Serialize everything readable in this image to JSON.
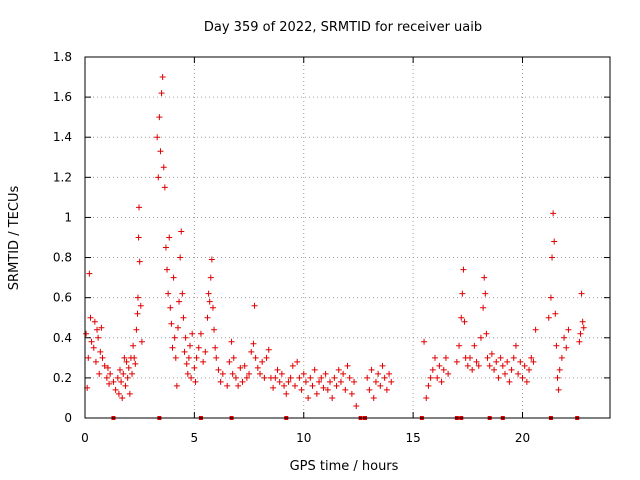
{
  "chart_data": {
    "type": "scatter",
    "title": "Day 359 of 2022, SRMTID for receiver uaib",
    "xlabel": "GPS time / hours",
    "ylabel": "SRMTID / TECUs",
    "xlim": [
      0,
      24
    ],
    "ylim": [
      0,
      1.8
    ],
    "grid": true,
    "marker": "+",
    "color": "#e00000",
    "x_ticks": [
      {
        "value": 0,
        "label": "0"
      },
      {
        "value": 5,
        "label": "5"
      },
      {
        "value": 10,
        "label": "10"
      },
      {
        "value": 15,
        "label": "15"
      },
      {
        "value": 20,
        "label": "20"
      }
    ],
    "y_ticks": [
      {
        "value": 0,
        "label": "0"
      },
      {
        "value": 0.2,
        "label": "0.2"
      },
      {
        "value": 0.4,
        "label": "0.4"
      },
      {
        "value": 0.6,
        "label": "0.6"
      },
      {
        "value": 0.8,
        "label": "0.8"
      },
      {
        "value": 1.0,
        "label": "1"
      },
      {
        "value": 1.2,
        "label": "1.2"
      },
      {
        "value": 1.4,
        "label": "1.4"
      },
      {
        "value": 1.6,
        "label": "1.6"
      },
      {
        "value": 1.8,
        "label": "1.8"
      }
    ],
    "series": [
      {
        "name": "SRMTID",
        "points": [
          [
            0.05,
            0.42
          ],
          [
            0.1,
            0.15
          ],
          [
            0.15,
            0.3
          ],
          [
            0.2,
            0.72
          ],
          [
            0.25,
            0.5
          ],
          [
            0.3,
            0.38
          ],
          [
            0.4,
            0.35
          ],
          [
            0.45,
            0.48
          ],
          [
            0.5,
            0.28
          ],
          [
            0.55,
            0.44
          ],
          [
            0.6,
            0.4
          ],
          [
            0.65,
            0.22
          ],
          [
            0.7,
            0.33
          ],
          [
            0.75,
            0.45
          ],
          [
            0.8,
            0.3
          ],
          [
            0.9,
            0.26
          ],
          [
            1.0,
            0.2
          ],
          [
            1.05,
            0.25
          ],
          [
            1.1,
            0.17
          ],
          [
            1.15,
            0.22
          ],
          [
            1.3,
            0.18
          ],
          [
            1.4,
            0.14
          ],
          [
            1.5,
            0.2
          ],
          [
            1.55,
            0.12
          ],
          [
            1.6,
            0.24
          ],
          [
            1.65,
            0.18
          ],
          [
            1.7,
            0.1
          ],
          [
            1.75,
            0.22
          ],
          [
            1.8,
            0.3
          ],
          [
            1.85,
            0.16
          ],
          [
            1.9,
            0.28
          ],
          [
            1.95,
            0.2
          ],
          [
            2.0,
            0.25
          ],
          [
            2.05,
            0.12
          ],
          [
            2.1,
            0.3
          ],
          [
            2.15,
            0.22
          ],
          [
            2.2,
            0.36
          ],
          [
            2.25,
            0.3
          ],
          [
            2.3,
            0.27
          ],
          [
            2.35,
            0.44
          ],
          [
            2.4,
            0.52
          ],
          [
            2.42,
            0.6
          ],
          [
            2.45,
            0.9
          ],
          [
            2.47,
            1.05
          ],
          [
            2.5,
            0.78
          ],
          [
            2.55,
            0.56
          ],
          [
            2.6,
            0.38
          ],
          [
            3.3,
            1.4
          ],
          [
            3.35,
            1.2
          ],
          [
            3.4,
            1.5
          ],
          [
            3.45,
            1.33
          ],
          [
            3.5,
            1.62
          ],
          [
            3.55,
            1.7
          ],
          [
            3.6,
            1.25
          ],
          [
            3.65,
            1.15
          ],
          [
            3.7,
            0.85
          ],
          [
            3.75,
            0.74
          ],
          [
            3.8,
            0.62
          ],
          [
            3.85,
            0.9
          ],
          [
            3.9,
            0.55
          ],
          [
            3.95,
            0.47
          ],
          [
            4.0,
            0.35
          ],
          [
            4.05,
            0.7
          ],
          [
            4.1,
            0.4
          ],
          [
            4.15,
            0.3
          ],
          [
            4.2,
            0.16
          ],
          [
            4.25,
            0.45
          ],
          [
            4.3,
            0.58
          ],
          [
            4.35,
            0.8
          ],
          [
            4.4,
            0.93
          ],
          [
            4.45,
            0.62
          ],
          [
            4.5,
            0.5
          ],
          [
            4.55,
            0.33
          ],
          [
            4.6,
            0.4
          ],
          [
            4.65,
            0.27
          ],
          [
            4.7,
            0.22
          ],
          [
            4.75,
            0.3
          ],
          [
            4.8,
            0.36
          ],
          [
            4.85,
            0.2
          ],
          [
            4.9,
            0.42
          ],
          [
            5.0,
            0.25
          ],
          [
            5.05,
            0.18
          ],
          [
            5.1,
            0.3
          ],
          [
            5.2,
            0.35
          ],
          [
            5.3,
            0.42
          ],
          [
            5.4,
            0.28
          ],
          [
            5.5,
            0.33
          ],
          [
            5.6,
            0.5
          ],
          [
            5.65,
            0.62
          ],
          [
            5.7,
            0.58
          ],
          [
            5.75,
            0.7
          ],
          [
            5.8,
            0.79
          ],
          [
            5.85,
            0.55
          ],
          [
            5.9,
            0.44
          ],
          [
            5.95,
            0.35
          ],
          [
            6.0,
            0.3
          ],
          [
            6.1,
            0.24
          ],
          [
            6.2,
            0.18
          ],
          [
            6.3,
            0.22
          ],
          [
            6.5,
            0.16
          ],
          [
            6.6,
            0.28
          ],
          [
            6.7,
            0.38
          ],
          [
            6.75,
            0.22
          ],
          [
            6.8,
            0.3
          ],
          [
            6.9,
            0.2
          ],
          [
            7.0,
            0.16
          ],
          [
            7.1,
            0.25
          ],
          [
            7.2,
            0.18
          ],
          [
            7.3,
            0.26
          ],
          [
            7.4,
            0.2
          ],
          [
            7.5,
            0.22
          ],
          [
            7.6,
            0.33
          ],
          [
            7.7,
            0.37
          ],
          [
            7.75,
            0.56
          ],
          [
            7.8,
            0.3
          ],
          [
            7.9,
            0.25
          ],
          [
            8.0,
            0.22
          ],
          [
            8.1,
            0.28
          ],
          [
            8.2,
            0.2
          ],
          [
            8.3,
            0.3
          ],
          [
            8.4,
            0.34
          ],
          [
            8.5,
            0.2
          ],
          [
            8.6,
            0.15
          ],
          [
            8.7,
            0.2
          ],
          [
            8.8,
            0.24
          ],
          [
            8.9,
            0.18
          ],
          [
            9.0,
            0.22
          ],
          [
            9.1,
            0.16
          ],
          [
            9.2,
            0.12
          ],
          [
            9.3,
            0.18
          ],
          [
            9.4,
            0.2
          ],
          [
            9.5,
            0.26
          ],
          [
            9.6,
            0.16
          ],
          [
            9.7,
            0.28
          ],
          [
            9.8,
            0.2
          ],
          [
            9.9,
            0.14
          ],
          [
            10.0,
            0.22
          ],
          [
            10.1,
            0.18
          ],
          [
            10.2,
            0.1
          ],
          [
            10.3,
            0.2
          ],
          [
            10.4,
            0.16
          ],
          [
            10.5,
            0.24
          ],
          [
            10.6,
            0.12
          ],
          [
            10.7,
            0.18
          ],
          [
            10.8,
            0.2
          ],
          [
            10.9,
            0.15
          ],
          [
            11.0,
            0.22
          ],
          [
            11.1,
            0.14
          ],
          [
            11.2,
            0.18
          ],
          [
            11.3,
            0.1
          ],
          [
            11.4,
            0.2
          ],
          [
            11.5,
            0.16
          ],
          [
            11.6,
            0.24
          ],
          [
            11.7,
            0.18
          ],
          [
            11.8,
            0.22
          ],
          [
            11.9,
            0.14
          ],
          [
            12.0,
            0.26
          ],
          [
            12.1,
            0.2
          ],
          [
            12.2,
            0.12
          ],
          [
            12.3,
            0.18
          ],
          [
            12.4,
            0.06
          ],
          [
            12.9,
            0.2
          ],
          [
            13.0,
            0.14
          ],
          [
            13.1,
            0.24
          ],
          [
            13.2,
            0.1
          ],
          [
            13.3,
            0.18
          ],
          [
            13.4,
            0.22
          ],
          [
            13.5,
            0.16
          ],
          [
            13.6,
            0.26
          ],
          [
            13.7,
            0.2
          ],
          [
            13.8,
            0.14
          ],
          [
            13.9,
            0.22
          ],
          [
            14.0,
            0.18
          ],
          [
            15.5,
            0.38
          ],
          [
            15.6,
            0.1
          ],
          [
            15.7,
            0.16
          ],
          [
            15.8,
            0.2
          ],
          [
            15.9,
            0.24
          ],
          [
            16.0,
            0.3
          ],
          [
            16.1,
            0.2
          ],
          [
            16.2,
            0.26
          ],
          [
            16.3,
            0.18
          ],
          [
            16.4,
            0.24
          ],
          [
            16.5,
            0.3
          ],
          [
            16.6,
            0.22
          ],
          [
            17.0,
            0.28
          ],
          [
            17.1,
            0.36
          ],
          [
            17.2,
            0.5
          ],
          [
            17.25,
            0.62
          ],
          [
            17.3,
            0.74
          ],
          [
            17.35,
            0.48
          ],
          [
            17.4,
            0.3
          ],
          [
            17.5,
            0.26
          ],
          [
            17.6,
            0.3
          ],
          [
            17.7,
            0.24
          ],
          [
            17.8,
            0.36
          ],
          [
            17.9,
            0.28
          ],
          [
            18.0,
            0.26
          ],
          [
            18.1,
            0.4
          ],
          [
            18.2,
            0.55
          ],
          [
            18.25,
            0.7
          ],
          [
            18.3,
            0.62
          ],
          [
            18.35,
            0.42
          ],
          [
            18.4,
            0.3
          ],
          [
            18.5,
            0.26
          ],
          [
            18.6,
            0.32
          ],
          [
            18.7,
            0.24
          ],
          [
            18.8,
            0.28
          ],
          [
            18.9,
            0.2
          ],
          [
            19.0,
            0.3
          ],
          [
            19.1,
            0.26
          ],
          [
            19.2,
            0.22
          ],
          [
            19.3,
            0.28
          ],
          [
            19.4,
            0.18
          ],
          [
            19.5,
            0.24
          ],
          [
            19.6,
            0.3
          ],
          [
            19.7,
            0.36
          ],
          [
            19.8,
            0.22
          ],
          [
            19.9,
            0.28
          ],
          [
            20.0,
            0.2
          ],
          [
            20.1,
            0.26
          ],
          [
            20.2,
            0.18
          ],
          [
            20.3,
            0.24
          ],
          [
            20.4,
            0.3
          ],
          [
            20.5,
            0.28
          ],
          [
            20.6,
            0.44
          ],
          [
            21.2,
            0.5
          ],
          [
            21.3,
            0.6
          ],
          [
            21.35,
            0.8
          ],
          [
            21.4,
            1.02
          ],
          [
            21.45,
            0.88
          ],
          [
            21.5,
            0.52
          ],
          [
            21.55,
            0.36
          ],
          [
            21.6,
            0.2
          ],
          [
            21.65,
            0.14
          ],
          [
            21.7,
            0.24
          ],
          [
            21.8,
            0.3
          ],
          [
            21.9,
            0.4
          ],
          [
            22.0,
            0.35
          ],
          [
            22.1,
            0.44
          ],
          [
            22.6,
            0.38
          ],
          [
            22.65,
            0.42
          ],
          [
            22.7,
            0.62
          ],
          [
            22.75,
            0.48
          ],
          [
            22.8,
            0.45
          ]
        ]
      }
    ],
    "gap_markers": [
      1.3,
      3.4,
      5.3,
      6.7,
      9.2,
      12.6,
      12.8,
      15.4,
      17.0,
      17.2,
      18.5,
      19.1,
      21.3,
      22.5
    ]
  }
}
